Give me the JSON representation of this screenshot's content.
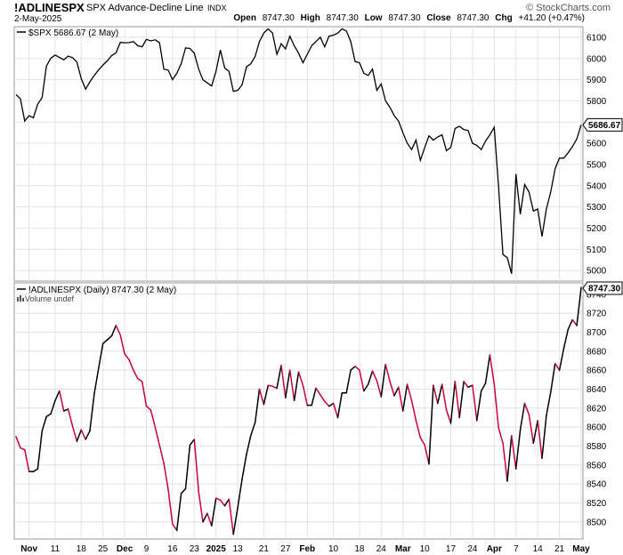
{
  "header": {
    "symbol": "!ADLINESPX",
    "description": "SPX Advance-Decline Line",
    "exchange": "INDX",
    "brand": "© StockCharts.com",
    "date": "2-May-2025",
    "open_label": "Open",
    "open": "8747.30",
    "high_label": "High",
    "high": "8747.30",
    "low_label": "Low",
    "low": "8747.30",
    "close_label": "Close",
    "close": "8747.30",
    "chg_label": "Chg",
    "chg": "+41.20 (+0.47%)"
  },
  "chart_data": [
    {
      "type": "line",
      "panel": "price",
      "legend": "$SPX 5686.67 (2 May)",
      "last_value_label": "5686.67",
      "ylim": [
        4950,
        6150
      ],
      "y_ticks": [
        5000,
        5100,
        5200,
        5300,
        5400,
        5500,
        5600,
        5700,
        5800,
        5900,
        6000,
        6100
      ],
      "line_color": "#000000",
      "values": [
        5830,
        5810,
        5705,
        5730,
        5720,
        5785,
        5815,
        5965,
        6001,
        6016,
        6005,
        5994,
        6011,
        6004,
        5983,
        5905,
        5855,
        5890,
        5920,
        5946,
        5969,
        5989,
        6014,
        6026,
        6076,
        6074,
        6075,
        6080,
        6060,
        6055,
        6090,
        6083,
        6088,
        6075,
        5950,
        5945,
        5900,
        5930,
        5975,
        6050,
        6047,
        6025,
        5950,
        5900,
        5885,
        5870,
        5940,
        6040,
        5955,
        5940,
        5845,
        5850,
        5875,
        5960,
        5975,
        6010,
        6080,
        6120,
        6140,
        6120,
        6020,
        6070,
        6045,
        6105,
        6060,
        6025,
        5980,
        6020,
        6060,
        6080,
        6100,
        6055,
        6105,
        6110,
        6120,
        6140,
        6130,
        6080,
        5985,
        5980,
        5930,
        5920,
        5950,
        5850,
        5880,
        5800,
        5770,
        5730,
        5705,
        5650,
        5600,
        5570,
        5615,
        5520,
        5580,
        5635,
        5615,
        5630,
        5640,
        5565,
        5580,
        5670,
        5680,
        5665,
        5660,
        5600,
        5590,
        5570,
        5610,
        5640,
        5675,
        5395,
        5075,
        5060,
        4985,
        5455,
        5265,
        5405,
        5370,
        5280,
        5290,
        5160,
        5290,
        5370,
        5480,
        5530,
        5530,
        5555,
        5585,
        5620,
        5687
      ],
      "x_labels": [
        "Nov",
        "11",
        "18",
        "25",
        "Dec",
        "9",
        "16",
        "23",
        "2025",
        "13",
        "21",
        "27",
        "Feb",
        "10",
        "18",
        "24",
        "Mar",
        "10",
        "17",
        "24",
        "Apr",
        "7",
        "14",
        "21",
        "May"
      ]
    },
    {
      "type": "line",
      "panel": "adline",
      "legend": "!ADLINESPX (Daily) 8747.30 (2 May)",
      "volume_note": "Volume undef",
      "last_value_label": "8747.30",
      "ylim": [
        8482,
        8752
      ],
      "y_ticks": [
        8500,
        8520,
        8540,
        8560,
        8580,
        8600,
        8620,
        8640,
        8660,
        8680,
        8700,
        8720,
        8740
      ],
      "up_color": "#000000",
      "down_color": "#cc0033",
      "values": [
        8590,
        8578,
        8576,
        8553,
        8553,
        8556,
        8596,
        8611,
        8614,
        8628,
        8638,
        8617,
        8619,
        8601,
        8585,
        8597,
        8587,
        8596,
        8635,
        8662,
        8688,
        8692,
        8696,
        8707,
        8697,
        8677,
        8671,
        8660,
        8651,
        8648,
        8622,
        8618,
        8600,
        8581,
        8562,
        8534,
        8498,
        8491,
        8530,
        8535,
        8581,
        8587,
        8532,
        8500,
        8509,
        8496,
        8525,
        8523,
        8517,
        8524,
        8487,
        8515,
        8545,
        8571,
        8591,
        8605,
        8640,
        8624,
        8644,
        8643,
        8641,
        8665,
        8631,
        8660,
        8628,
        8658,
        8644,
        8623,
        8623,
        8641,
        8634,
        8627,
        8622,
        8625,
        8610,
        8636,
        8636,
        8660,
        8664,
        8660,
        8638,
        8645,
        8659,
        8649,
        8632,
        8666,
        8648,
        8633,
        8642,
        8617,
        8645,
        8628,
        8607,
        8589,
        8581,
        8561,
        8644,
        8625,
        8645,
        8618,
        8604,
        8648,
        8610,
        8648,
        8642,
        8644,
        8607,
        8638,
        8646,
        8676,
        8645,
        8599,
        8583,
        8543,
        8591,
        8556,
        8597,
        8625,
        8613,
        8583,
        8607,
        8567,
        8612,
        8637,
        8667,
        8660,
        8683,
        8703,
        8713,
        8707,
        8747
      ],
      "x_labels": [
        "Nov",
        "11",
        "18",
        "25",
        "Dec",
        "9",
        "16",
        "23",
        "2025",
        "13",
        "21",
        "27",
        "Feb",
        "10",
        "18",
        "24",
        "Mar",
        "10",
        "17",
        "24",
        "Apr",
        "7",
        "14",
        "21",
        "May"
      ]
    }
  ]
}
